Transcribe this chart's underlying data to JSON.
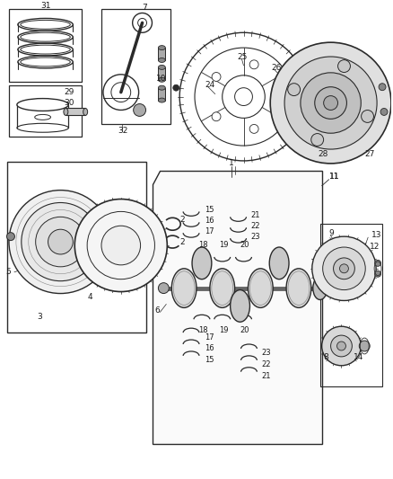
{
  "bg_color": "#ffffff",
  "line_color": "#2a2a2a",
  "text_color": "#1a1a1a",
  "fs": 6.5,
  "fig_w": 4.38,
  "fig_h": 5.33,
  "dpi": 100
}
